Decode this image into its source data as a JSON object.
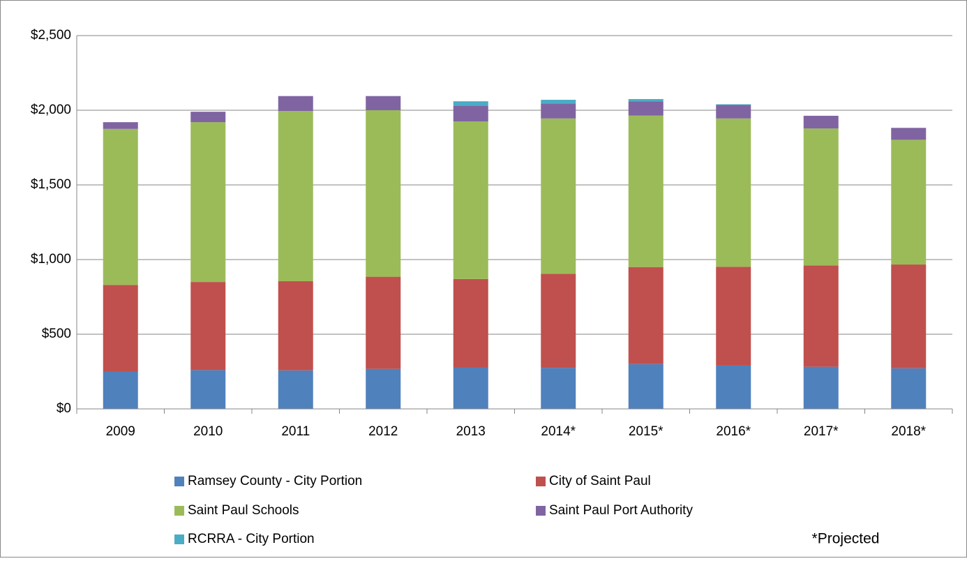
{
  "chart_data": {
    "type": "stacked_bar",
    "categories": [
      "2009",
      "2010",
      "2011",
      "2012",
      "2013",
      "2014*",
      "2015*",
      "2016*",
      "2017*",
      "2018*"
    ],
    "series": [
      {
        "name": "Ramsey County - City Portion",
        "color": "#4f81bd",
        "values": [
          250,
          260,
          258,
          268,
          278,
          275,
          300,
          290,
          282,
          272
        ]
      },
      {
        "name": "City of Saint Paul",
        "color": "#c0504d",
        "values": [
          580,
          590,
          597,
          617,
          592,
          630,
          650,
          662,
          678,
          695
        ]
      },
      {
        "name": "Saint Paul Schools",
        "color": "#9bbb59",
        "values": [
          1045,
          1070,
          1140,
          1115,
          1055,
          1040,
          1015,
          993,
          918,
          835
        ]
      },
      {
        "name": "Saint Paul Port Authority",
        "color": "#8064a2",
        "values": [
          45,
          70,
          100,
          95,
          105,
          100,
          95,
          90,
          85,
          80
        ]
      },
      {
        "name": "RCRRA - City Portion",
        "color": "#4bacc6",
        "values": [
          0,
          0,
          0,
          0,
          30,
          25,
          15,
          5,
          0,
          0
        ]
      }
    ],
    "ylim": [
      0,
      2500
    ],
    "yticks": [
      {
        "value": 0,
        "label": "$0"
      },
      {
        "value": 500,
        "label": "$500"
      },
      {
        "value": 1000,
        "label": "$1,000"
      },
      {
        "value": 1500,
        "label": "$1,500"
      },
      {
        "value": 2000,
        "label": "$2,000"
      },
      {
        "value": 2500,
        "label": "$2,500"
      }
    ],
    "grid": true,
    "annotation": "*Projected"
  }
}
